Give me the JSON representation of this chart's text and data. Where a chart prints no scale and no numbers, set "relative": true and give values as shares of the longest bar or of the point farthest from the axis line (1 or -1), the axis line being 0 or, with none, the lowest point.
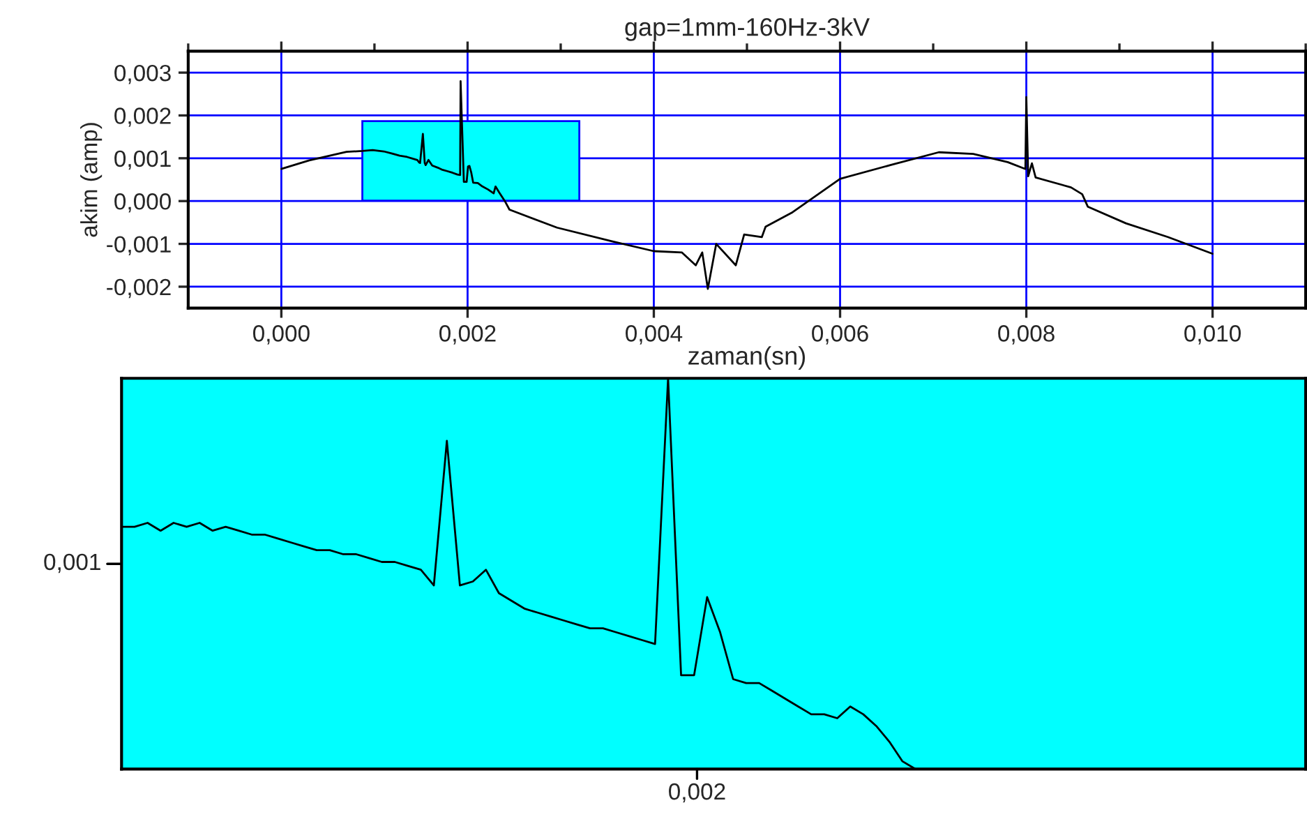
{
  "chart_data": [
    {
      "type": "line",
      "title": "gap=1mm-160Hz-3kV",
      "xlabel": "zaman(sn)",
      "ylabel": "akim (amp)",
      "xlim": [
        -0.001,
        0.011
      ],
      "ylim": [
        -0.0025,
        0.0035
      ],
      "xticks": [
        {
          "value": 0.0,
          "label": "0,000"
        },
        {
          "value": 0.002,
          "label": "0,002"
        },
        {
          "value": 0.004,
          "label": "0,004"
        },
        {
          "value": 0.006,
          "label": "0,006"
        },
        {
          "value": 0.008,
          "label": "0,008"
        },
        {
          "value": 0.01,
          "label": "0,010"
        }
      ],
      "yticks": [
        {
          "value": -0.002,
          "label": "-0,002"
        },
        {
          "value": -0.001,
          "label": "-0,001"
        },
        {
          "value": 0.0,
          "label": "0,000"
        },
        {
          "value": 0.001,
          "label": "0,001"
        },
        {
          "value": 0.002,
          "label": "0,002"
        },
        {
          "value": 0.003,
          "label": "0,003"
        }
      ],
      "grid": true,
      "line_style": "solid",
      "marker": "none",
      "bands": [
        {
          "axis": "x",
          "from": 0.00087,
          "to": 0.0032,
          "color": "#00ffff"
        }
      ],
      "series": [
        {
          "color": "#000000",
          "x": [
            0.0,
            0.0003,
            0.0007,
            0.00087,
            0.00098,
            0.0011,
            0.00119,
            0.00127,
            0.00135,
            0.00141,
            0.00146,
            0.00148,
            0.00149,
            0.00152,
            0.00154,
            0.00155,
            0.00158,
            0.00162,
            0.00168,
            0.00173,
            0.00178,
            0.00184,
            0.00189,
            0.00192,
            0.001925,
            0.00196,
            0.00199,
            0.002005,
            0.00202,
            0.00204,
            0.00206,
            0.00211,
            0.00216,
            0.00222,
            0.00228,
            0.0023,
            0.00234,
            0.0024,
            0.00245,
            0.00296,
            0.00355,
            0.004,
            0.0043,
            0.00445,
            0.00452,
            0.00458,
            0.00467,
            0.00488,
            0.00497,
            0.00516,
            0.0052,
            0.00549,
            0.006,
            0.00654,
            0.00706,
            0.00743,
            0.0078,
            0.00799,
            0.008,
            0.00802,
            0.00806,
            0.0081,
            0.00848,
            0.0086,
            0.00866,
            0.00907,
            0.00952,
            0.01
          ],
          "values": [
            0.00075,
            0.00095,
            0.00115,
            0.00117,
            0.00119,
            0.00116,
            0.00111,
            0.00106,
            0.00103,
            0.00099,
            0.00096,
            0.0009,
            0.00089,
            0.00157,
            0.00089,
            0.00084,
            0.00096,
            0.00083,
            0.00078,
            0.00073,
            0.0007,
            0.00066,
            0.00062,
            0.00061,
            0.0028,
            0.00045,
            0.00045,
            0.00081,
            0.00082,
            0.00066,
            0.00043,
            0.00042,
            0.00034,
            0.00027,
            0.00018,
            0.00034,
            0.0002,
            0.0,
            -0.0002,
            -0.00062,
            -0.00094,
            -0.00117,
            -0.0012,
            -0.0015,
            -0.0012,
            -0.00205,
            -0.001,
            -0.0015,
            -0.00078,
            -0.00084,
            -0.0006,
            -0.00026,
            0.00052,
            0.00084,
            0.00114,
            0.0011,
            0.00091,
            0.00075,
            0.00243,
            0.00058,
            0.00088,
            0.00055,
            0.00032,
            0.00016,
            -0.00013,
            -0.00052,
            -0.00084,
            -0.00123
          ]
        }
      ]
    },
    {
      "type": "line",
      "relative": true,
      "annotations": [
        "0,001",
        "0,002"
      ],
      "line_style": "solid",
      "marker": "none",
      "categories": [
        null,
        null,
        null,
        null,
        null,
        null,
        null,
        null,
        null,
        null,
        null,
        null,
        null,
        null,
        null,
        null,
        null,
        null,
        null,
        null,
        null,
        null,
        null,
        null,
        null,
        null,
        null,
        null,
        null,
        null,
        null,
        null,
        null,
        null,
        null,
        null,
        null,
        null,
        null,
        null,
        null,
        null,
        null,
        null,
        null,
        null,
        null,
        null,
        null,
        null,
        null,
        null,
        null,
        null,
        null,
        null,
        null,
        null,
        null,
        null,
        null,
        null,
        null,
        null,
        null,
        null,
        null,
        null,
        null,
        null,
        null,
        null,
        null,
        null,
        null,
        null,
        null,
        null,
        null,
        null,
        null,
        null,
        null,
        null,
        null,
        null,
        null,
        null,
        null,
        null,
        null,
        null
      ],
      "series": [
        {
          "color": "#000000",
          "values": [
            0.62,
            0.62,
            0.63,
            0.61,
            0.63,
            0.62,
            0.63,
            0.61,
            0.62,
            0.61,
            0.6,
            0.6,
            0.59,
            0.58,
            0.57,
            0.56,
            0.56,
            0.55,
            0.55,
            0.54,
            0.53,
            0.53,
            0.52,
            0.51,
            0.47,
            0.84,
            0.47,
            0.48,
            0.51,
            0.45,
            0.43,
            0.41,
            0.4,
            0.39,
            0.38,
            0.37,
            0.36,
            0.36,
            0.35,
            0.34,
            0.33,
            0.32,
            1,
            0.24,
            0.24,
            0.44,
            0.35,
            0.23,
            0.22,
            0.22,
            0.2,
            0.18,
            0.16,
            0.14,
            0.14,
            0.13,
            0.16,
            0.14,
            0.11,
            0.07,
            0.02,
            0,
            null,
            null,
            null,
            null,
            null,
            null,
            null,
            null,
            null,
            null,
            null,
            null,
            null,
            null,
            null,
            null,
            null,
            null,
            null,
            null,
            null,
            null,
            null,
            null,
            null,
            null,
            null,
            null,
            null,
            null
          ]
        }
      ]
    }
  ]
}
